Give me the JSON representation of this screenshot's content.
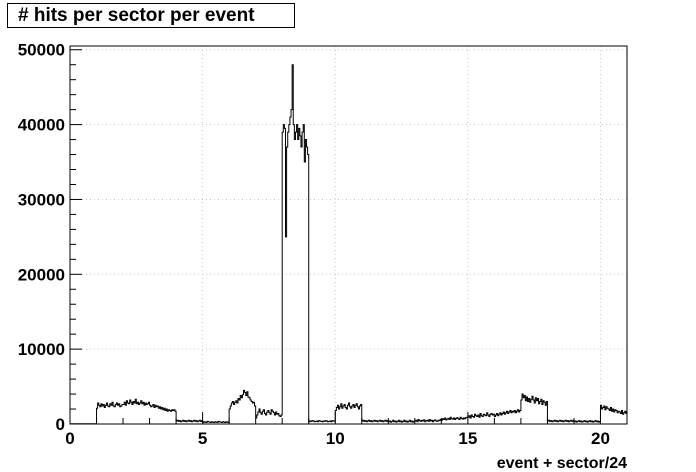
{
  "chart_data": {
    "type": "histogram",
    "title": "# hits per sector per event",
    "xlabel": "event + sector/24",
    "ylabel": "",
    "xlim": [
      0,
      21
    ],
    "ylim": [
      0,
      50500
    ],
    "grid": true,
    "x_ticks": [
      0,
      5,
      10,
      15,
      20
    ],
    "x_tick_labels": [
      "0",
      "5",
      "10",
      "15",
      "20"
    ],
    "y_ticks": [
      0,
      10000,
      20000,
      30000,
      40000,
      50000
    ],
    "y_tick_labels": [
      "0",
      "10000",
      "20000",
      "30000",
      "40000",
      "50000"
    ],
    "bin_width": 0.041667,
    "series": [
      {
        "values_per_event": [
          [
            20,
            30,
            25,
            20,
            35,
            30,
            25,
            20,
            30,
            25,
            20,
            30,
            25,
            20,
            35,
            30,
            25,
            20,
            30,
            25,
            20,
            30,
            25,
            20
          ],
          [
            2100,
            2800,
            2500,
            2300,
            2700,
            2400,
            2600,
            2200,
            2500,
            2800,
            2400,
            2300,
            2700,
            2500,
            2900,
            2400,
            2300,
            2600,
            2800,
            2500,
            2700,
            2300,
            2400,
            2600
          ],
          [
            2600,
            2900,
            2500,
            3100,
            2800,
            2700,
            3200,
            2900,
            2600,
            3000,
            2800,
            3300,
            2700,
            2900,
            2600,
            2800,
            3100,
            2700,
            2900,
            2500,
            2800,
            2600,
            2700,
            2900
          ],
          [
            2500,
            2300,
            2400,
            2600,
            2200,
            2500,
            2300,
            2400,
            2100,
            2300,
            2000,
            2200,
            1900,
            2100,
            1800,
            2000,
            1700,
            1900,
            1800,
            1700,
            1900,
            1800,
            1900,
            1700
          ],
          [
            400,
            500,
            350,
            450,
            300,
            400,
            500,
            350,
            450,
            300,
            400,
            500,
            350,
            450,
            300,
            400,
            500,
            350,
            450,
            300,
            400,
            500,
            350,
            450
          ],
          [
            200,
            300,
            250,
            200,
            350,
            300,
            250,
            200,
            300,
            250,
            200,
            300,
            250,
            200,
            350,
            300,
            250,
            200,
            300,
            250,
            200,
            300,
            250,
            200
          ],
          [
            2000,
            2400,
            2800,
            3000,
            2600,
            2900,
            3100,
            2800,
            3400,
            3200,
            3800,
            3500,
            3900,
            4500,
            4200,
            3800,
            4300,
            3600,
            3500,
            3200,
            3000,
            2800,
            2900,
            2400
          ],
          [
            800,
            1200,
            1600,
            2000,
            1500,
            1300,
            1700,
            1900,
            1400,
            1200,
            1600,
            1800,
            1500,
            1300,
            1900,
            1700,
            1500,
            1200,
            1600,
            1300,
            1400,
            1100,
            1000,
            1200
          ],
          [
            39000,
            40000,
            39500,
            25000,
            37000,
            39000,
            40000,
            41000,
            42000,
            48000,
            40000,
            38000,
            39000,
            40000,
            38000,
            39500,
            38500,
            37000,
            39000,
            40000,
            35000,
            38000,
            37000,
            36000
          ],
          [
            300,
            400,
            350,
            450,
            400,
            300,
            350,
            400,
            300,
            450,
            400,
            350,
            300,
            400,
            350,
            450,
            400,
            300,
            350,
            400,
            300,
            450,
            400,
            350
          ],
          [
            1800,
            2200,
            2500,
            2000,
            2300,
            2700,
            2100,
            2400,
            2600,
            2200,
            2000,
            2500,
            2800,
            2300,
            2100,
            2400,
            2600,
            2200,
            2500,
            2700,
            2300,
            2000,
            2400,
            2600
          ],
          [
            400,
            500,
            350,
            450,
            300,
            400,
            500,
            350,
            450,
            300,
            400,
            500,
            350,
            450,
            300,
            400,
            500,
            350,
            450,
            300,
            400,
            500,
            350,
            450
          ],
          [
            300,
            400,
            250,
            350,
            500,
            300,
            400,
            250,
            350,
            500,
            300,
            400,
            250,
            350,
            500,
            300,
            400,
            250,
            350,
            500,
            300,
            400,
            250,
            350
          ],
          [
            400,
            500,
            300,
            600,
            450,
            350,
            500,
            400,
            550,
            300,
            450,
            500,
            350,
            600,
            400,
            500,
            300,
            450,
            550,
            400,
            350,
            500,
            450,
            600
          ],
          [
            500,
            700,
            600,
            800,
            550,
            650,
            750,
            600,
            900,
            700,
            650,
            800,
            600,
            750,
            850,
            700,
            600,
            900,
            750,
            650,
            800,
            700,
            850,
            900
          ],
          [
            900,
            1100,
            800,
            1200,
            1000,
            900,
            1300,
            1100,
            1000,
            1200,
            900,
            1400,
            1100,
            1000,
            1300,
            1200,
            1100,
            1500,
            1200,
            1000,
            1300,
            1400,
            1200,
            1300
          ],
          [
            1000,
            1200,
            1400,
            1100,
            1300,
            1500,
            1200,
            1400,
            1600,
            1300,
            1500,
            1700,
            1400,
            1600,
            1800,
            1500,
            1700,
            1600,
            1800,
            1500,
            1700,
            1900,
            1600,
            1800
          ],
          [
            3200,
            4000,
            3500,
            3800,
            3100,
            3600,
            3000,
            3400,
            2900,
            3300,
            3700,
            3200,
            2800,
            3500,
            3100,
            3400,
            2700,
            3000,
            3300,
            2600,
            3100,
            2900,
            2500,
            3000
          ],
          [
            400,
            500,
            350,
            450,
            300,
            400,
            500,
            350,
            450,
            300,
            400,
            500,
            350,
            450,
            300,
            400,
            500,
            350,
            450,
            300,
            400,
            500,
            350,
            450
          ],
          [
            300,
            400,
            250,
            350,
            450,
            300,
            400,
            250,
            350,
            450,
            300,
            400,
            250,
            350,
            450,
            300,
            400,
            250,
            350,
            450,
            300,
            400,
            250,
            350
          ],
          [
            2500,
            2000,
            2200,
            2400,
            1900,
            2300,
            2100,
            2000,
            1800,
            2200,
            1700,
            2000,
            1600,
            1900,
            1800,
            1500,
            1700,
            1600,
            1400,
            1800,
            1300,
            1500,
            1700,
            1400
          ]
        ]
      }
    ]
  }
}
